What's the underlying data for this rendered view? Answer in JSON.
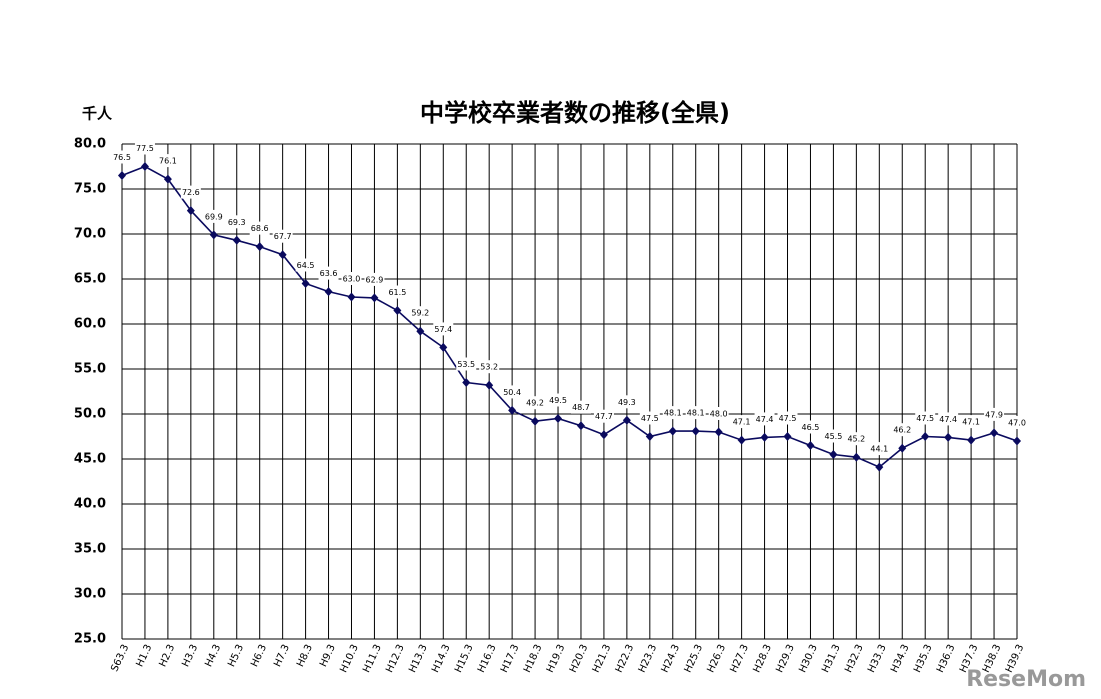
{
  "chart_data": {
    "type": "line",
    "title": "中学校卒業者数の推移(全県)",
    "y_unit": "千人",
    "watermark": "ReseMom",
    "categories": [
      "S63.3",
      "H1.3",
      "H2.3",
      "H3.3",
      "H4.3",
      "H5.3",
      "H6.3",
      "H7.3",
      "H8.3",
      "H9.3",
      "H10.3",
      "H11.3",
      "H12.3",
      "H13.3",
      "H14.3",
      "H15.3",
      "H16.3",
      "H17.3",
      "H18.3",
      "H19.3",
      "H20.3",
      "H21.3",
      "H22.3",
      "H23.3",
      "H24.3",
      "H25.3",
      "H26.3",
      "H27.3",
      "H28.3",
      "H29.3",
      "H30.3",
      "H31.3",
      "H32.3",
      "H33.3",
      "H34.3",
      "H35.3",
      "H36.3",
      "H37.3",
      "H38.3",
      "H39.3"
    ],
    "values": [
      76.5,
      77.5,
      76.1,
      72.6,
      69.9,
      69.3,
      68.6,
      67.7,
      64.5,
      63.6,
      63.0,
      62.9,
      61.5,
      59.2,
      57.4,
      53.5,
      53.2,
      50.4,
      49.2,
      49.5,
      48.7,
      47.7,
      49.3,
      47.5,
      48.1,
      48.1,
      48.0,
      47.1,
      47.4,
      47.5,
      46.5,
      45.5,
      45.2,
      44.1,
      46.2,
      47.5,
      47.4,
      47.1,
      47.9,
      47.0
    ],
    "value_labels": [
      "76.5",
      "77.5",
      "76.1",
      "72.6",
      "69.9",
      "69.3",
      "68.6",
      "67.7",
      "64.5",
      "63.6",
      "63.0",
      "62.9",
      "61.5",
      "59.2",
      "57.4",
      "53.5",
      "53.2",
      "50.4",
      "49.2",
      "49.5",
      "48.7",
      "47.7",
      "49.3",
      "47.5",
      "48.1",
      "48.1",
      "48.0",
      "47.1",
      "47.4",
      "47.5",
      "46.5",
      "45.5",
      "45.2",
      "44.1",
      "46.2",
      "47.5",
      "47.4",
      "47.1",
      "47.9",
      "47.0"
    ],
    "color": "#0a0a5e",
    "ylim": [
      25,
      80
    ],
    "yticks": [
      {
        "value": 25,
        "label": "25.0"
      },
      {
        "value": 30,
        "label": "30.0"
      },
      {
        "value": 35,
        "label": "35.0"
      },
      {
        "value": 40,
        "label": "40.0"
      },
      {
        "value": 45,
        "label": "45.0"
      },
      {
        "value": 50,
        "label": "50.0"
      },
      {
        "value": 55,
        "label": "55.0"
      },
      {
        "value": 60,
        "label": "60.0"
      },
      {
        "value": 65,
        "label": "65.0"
      },
      {
        "value": 70,
        "label": "70.0"
      },
      {
        "value": 75,
        "label": "75.0"
      },
      {
        "value": 80,
        "label": "80.0"
      }
    ],
    "grid": true
  }
}
